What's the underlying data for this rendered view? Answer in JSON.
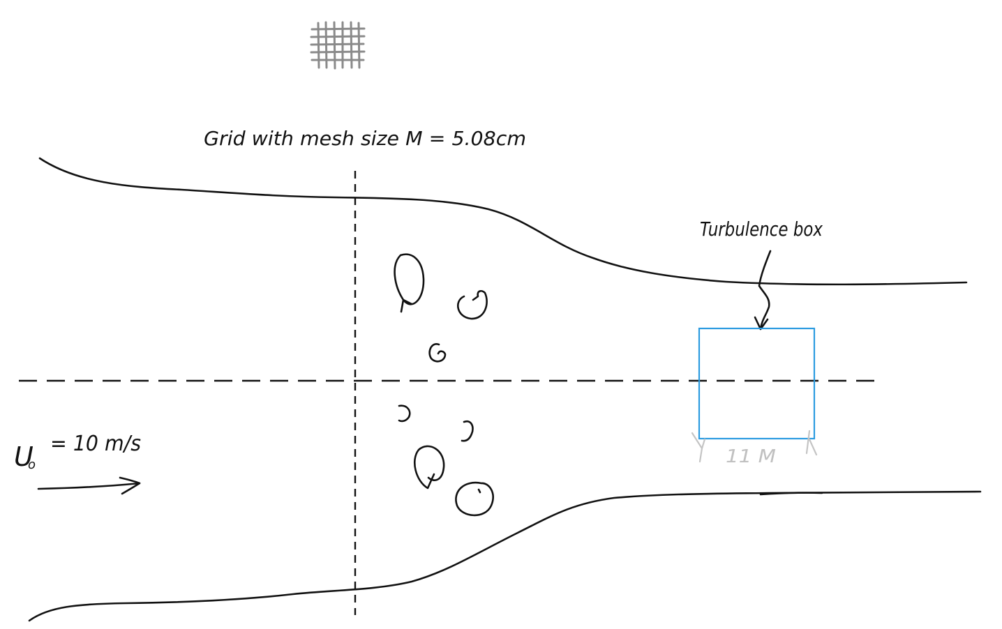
{
  "labels": {
    "grid": "Grid with mesh size  M = 5.08cm",
    "turbulence_box": "Turbulence box",
    "velocity": "U",
    "velocity_subscript": "o",
    "velocity_value": "= 10 m/s",
    "box_width": "11 M"
  },
  "colors": {
    "ink": "#111111",
    "box": "#2b9be0",
    "grid_icon": "#8a8a8a",
    "dimension": "#c4c4c4"
  },
  "icons": {
    "grid": "mesh-grid-icon",
    "flow": "right-arrow-icon",
    "eddy": "swirl-icon"
  }
}
